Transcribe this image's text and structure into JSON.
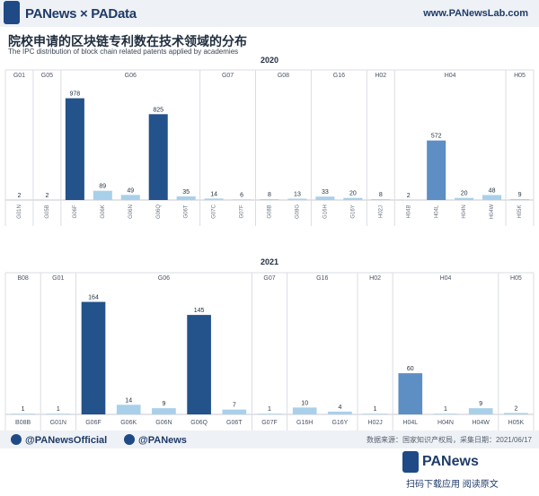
{
  "header": {
    "brand": "PANews × PAData",
    "url": "www.PANewsLab.com"
  },
  "title": {
    "zh": "院校申请的区块链专利数在技术领域的分布",
    "en": "The IPC distribution of block chain related patents applied by academies"
  },
  "colors": {
    "dark": "#24528a",
    "medium": "#5d8ec4",
    "light": "#a9d0ea",
    "grid": "#d9dde3"
  },
  "chart_data": [
    {
      "type": "bar",
      "title": "2020",
      "groups": [
        {
          "label": "G01",
          "categories": [
            "G01N"
          ]
        },
        {
          "label": "G05",
          "categories": [
            "G05B"
          ]
        },
        {
          "label": "G06",
          "categories": [
            "G06F",
            "G06K",
            "G06N",
            "G06Q",
            "G06T"
          ]
        },
        {
          "label": "G07",
          "categories": [
            "G07C",
            "G07F"
          ]
        },
        {
          "label": "G08",
          "categories": [
            "G08B",
            "G08G"
          ]
        },
        {
          "label": "G16",
          "categories": [
            "G16H",
            "G16Y"
          ]
        },
        {
          "label": "H02",
          "categories": [
            "H02J"
          ]
        },
        {
          "label": "H04",
          "categories": [
            "H04B",
            "H04L",
            "H04N",
            "H04W"
          ]
        },
        {
          "label": "H05",
          "categories": [
            "H05K"
          ]
        }
      ],
      "categories": [
        "G01N",
        "G05B",
        "G06F",
        "G06K",
        "G06N",
        "G06Q",
        "G06T",
        "G07C",
        "G07F",
        "G08B",
        "G08G",
        "G16H",
        "G16Y",
        "H02J",
        "H04B",
        "H04L",
        "H04N",
        "H04W",
        "H05K"
      ],
      "values": [
        2,
        2,
        978,
        89,
        49,
        825,
        35,
        14,
        6,
        8,
        13,
        33,
        20,
        8,
        2,
        572,
        20,
        48,
        9
      ],
      "colors": [
        "light",
        "light",
        "dark",
        "light",
        "light",
        "dark",
        "light",
        "light",
        "light",
        "light",
        "light",
        "light",
        "light",
        "light",
        "light",
        "medium",
        "light",
        "light",
        "light"
      ],
      "ylim": [
        0,
        1000
      ]
    },
    {
      "type": "bar",
      "title": "2021",
      "groups": [
        {
          "label": "B08",
          "categories": [
            "B08B"
          ]
        },
        {
          "label": "G01",
          "categories": [
            "G01N"
          ]
        },
        {
          "label": "G06",
          "categories": [
            "G06F",
            "G06K",
            "G06N",
            "G06Q",
            "G06T"
          ]
        },
        {
          "label": "G07",
          "categories": [
            "G07F"
          ]
        },
        {
          "label": "G16",
          "categories": [
            "G16H",
            "G16Y"
          ]
        },
        {
          "label": "H02",
          "categories": [
            "H02J"
          ]
        },
        {
          "label": "H04",
          "categories": [
            "H04L",
            "H04N",
            "H04W"
          ]
        },
        {
          "label": "H05",
          "categories": [
            "H05K"
          ]
        }
      ],
      "categories": [
        "B08B",
        "G01N",
        "G06F",
        "G06K",
        "G06N",
        "G06Q",
        "G06T",
        "G07F",
        "G16H",
        "G16Y",
        "H02J",
        "H04L",
        "H04N",
        "H04W",
        "H05K"
      ],
      "values": [
        1,
        1,
        164,
        14,
        9,
        145,
        7,
        1,
        10,
        4,
        1,
        60,
        1,
        9,
        2
      ],
      "colors": [
        "light",
        "light",
        "dark",
        "light",
        "light",
        "dark",
        "light",
        "light",
        "light",
        "light",
        "light",
        "medium",
        "light",
        "light",
        "light"
      ],
      "ylim": [
        0,
        170
      ]
    }
  ],
  "footer": {
    "twitter": "@PANewsOfficial",
    "weibo": "@PANews",
    "source": "数据来源：国家知识产权局，采集日期：2021/06/17"
  },
  "bottom": {
    "brand": "PANews",
    "cta": "扫码下载应用  阅读原文"
  }
}
